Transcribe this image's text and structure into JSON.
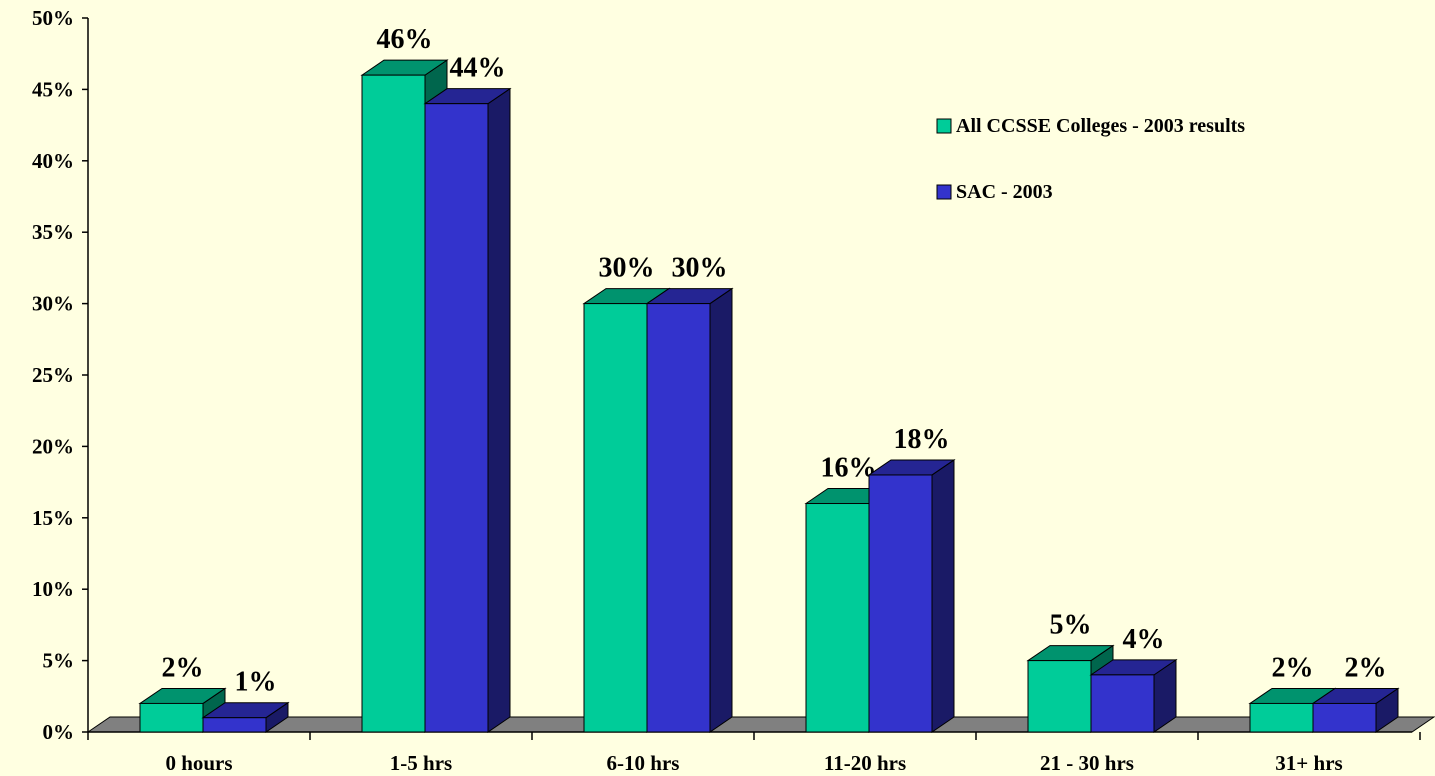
{
  "chart_data": {
    "type": "bar",
    "title": "",
    "xlabel": "",
    "ylabel": "",
    "categories": [
      "0 hours",
      "1-5 hrs",
      "6-10 hrs",
      "11-20 hrs",
      "21 - 30 hrs",
      "31+ hrs"
    ],
    "series": [
      {
        "name": "All CCSSE Colleges - 2003 results",
        "values": [
          2,
          46,
          30,
          16,
          5,
          2
        ],
        "labels": [
          "2%",
          "46%",
          "30%",
          "16%",
          "5%",
          "2%"
        ],
        "color": "#00CC99"
      },
      {
        "name": "SAC - 2003",
        "values": [
          1,
          44,
          30,
          18,
          4,
          2
        ],
        "labels": [
          "1%",
          "44%",
          "30%",
          "18%",
          "4%",
          "2%"
        ],
        "color": "#3333CC"
      }
    ],
    "ylim": [
      0,
      50
    ],
    "yticks": [
      0,
      5,
      10,
      15,
      20,
      25,
      30,
      35,
      40,
      45,
      50
    ],
    "ytick_labels": [
      "0%",
      "5%",
      "10%",
      "15%",
      "20%",
      "25%",
      "30%",
      "35%",
      "40%",
      "45%",
      "50%"
    ],
    "legend_position": "top-right",
    "grid": false,
    "style": "3d-columns",
    "background_color": "#FFFFE1",
    "floor_color": "#808080"
  }
}
